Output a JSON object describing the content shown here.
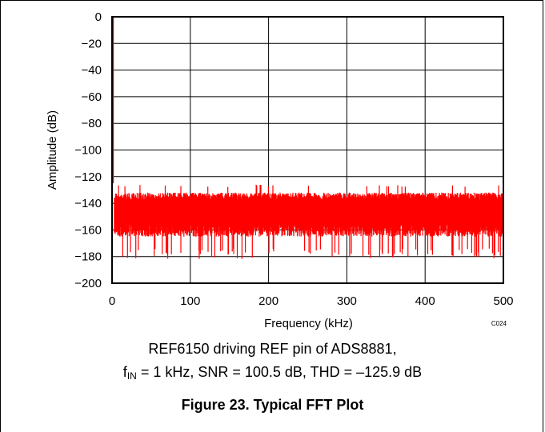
{
  "chart_data": {
    "type": "line",
    "xlabel": "Frequency (kHz)",
    "ylabel": "Amplitude (dB)",
    "xlim": [
      0,
      500
    ],
    "ylim": [
      -200,
      0
    ],
    "x_ticks": [
      "0",
      "100",
      "200",
      "300",
      "400",
      "500"
    ],
    "y_ticks": [
      "0",
      "−20",
      "−40",
      "−60",
      "−80",
      "−100",
      "−120",
      "−140",
      "−160",
      "−180",
      "−200"
    ],
    "grid": true,
    "line_color": "#ff0000",
    "fundamental": {
      "frequency_khz": 1,
      "amplitude_db": 0
    },
    "noise_floor": {
      "typical_top_db": -132,
      "typical_bottom_db": -165,
      "min_db": -182,
      "max_db": -126
    },
    "figure_code": "C024"
  },
  "caption": {
    "line1": "REF6150 driving REF pin of ADS8881,",
    "line2_prefix": "f",
    "line2_sub": "IN",
    "line2_rest": " = 1 kHz, SNR = 100.5 dB, THD = –125.9 dB"
  },
  "figure_title": "Figure 23. Typical FFT Plot"
}
